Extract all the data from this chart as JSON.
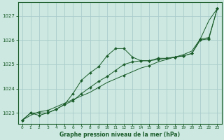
{
  "bg_color": "#cce8e0",
  "grid_color": "#aacccc",
  "line_color": "#1a5c2a",
  "xlabel": "Graphe pression niveau de la mer (hPa)",
  "xlim": [
    -0.5,
    23.5
  ],
  "ylim": [
    1022.55,
    1027.55
  ],
  "yticks": [
    1023,
    1024,
    1025,
    1026,
    1027
  ],
  "ytick_labels": [
    "1023",
    "1024",
    "1025",
    "1026",
    "1027"
  ],
  "xticks": [
    0,
    1,
    2,
    3,
    4,
    5,
    6,
    7,
    8,
    9,
    10,
    11,
    12,
    13,
    14,
    15,
    16,
    17,
    18,
    19,
    20,
    21,
    22,
    23
  ],
  "series": [
    {
      "x": [
        0,
        1,
        2,
        3,
        4,
        5,
        6,
        7,
        8,
        9,
        10,
        11,
        12,
        13,
        14,
        15,
        16,
        17,
        18,
        19,
        20,
        21,
        22,
        23
      ],
      "y": [
        1022.7,
        1023.0,
        1022.9,
        1023.0,
        1023.15,
        1023.35,
        1023.8,
        1024.35,
        1024.65,
        1024.9,
        1025.35,
        1025.65,
        1025.65,
        1025.3,
        1025.15,
        1025.15,
        1025.25,
        1025.25,
        1025.3,
        1025.35,
        1025.45,
        1026.05,
        1026.1,
        1027.3
      ]
    },
    {
      "x": [
        0,
        1,
        2,
        3,
        4,
        5,
        6,
        7,
        8,
        9,
        10,
        11,
        12,
        13,
        14,
        15,
        16,
        17,
        18,
        19,
        20,
        21,
        22,
        23
      ],
      "y": [
        1022.7,
        1023.0,
        1023.0,
        1023.0,
        1023.15,
        1023.35,
        1023.5,
        1023.8,
        1024.05,
        1024.3,
        1024.5,
        1024.75,
        1025.0,
        1025.1,
        1025.15,
        1025.15,
        1025.2,
        1025.25,
        1025.3,
        1025.35,
        1025.45,
        1026.0,
        1026.05,
        1027.3
      ]
    },
    {
      "x": [
        0,
        1,
        2,
        3,
        4,
        5,
        6,
        7,
        8,
        9,
        10,
        11,
        12,
        13,
        14,
        15,
        16,
        17,
        18,
        19,
        20,
        21,
        22,
        23
      ],
      "y": [
        1022.7,
        1022.9,
        1023.05,
        1023.1,
        1023.25,
        1023.4,
        1023.55,
        1023.7,
        1023.85,
        1024.05,
        1024.25,
        1024.4,
        1024.55,
        1024.7,
        1024.85,
        1024.95,
        1025.1,
        1025.2,
        1025.3,
        1025.4,
        1025.55,
        1026.05,
        1026.8,
        1027.3
      ]
    }
  ],
  "marker_series": [
    {
      "x": [
        0,
        3,
        6,
        9,
        12,
        15,
        18,
        21,
        23
      ],
      "y": [
        1022.7,
        1023.1,
        1023.55,
        1024.05,
        1024.55,
        1024.95,
        1025.3,
        1026.05,
        1027.3
      ]
    }
  ]
}
